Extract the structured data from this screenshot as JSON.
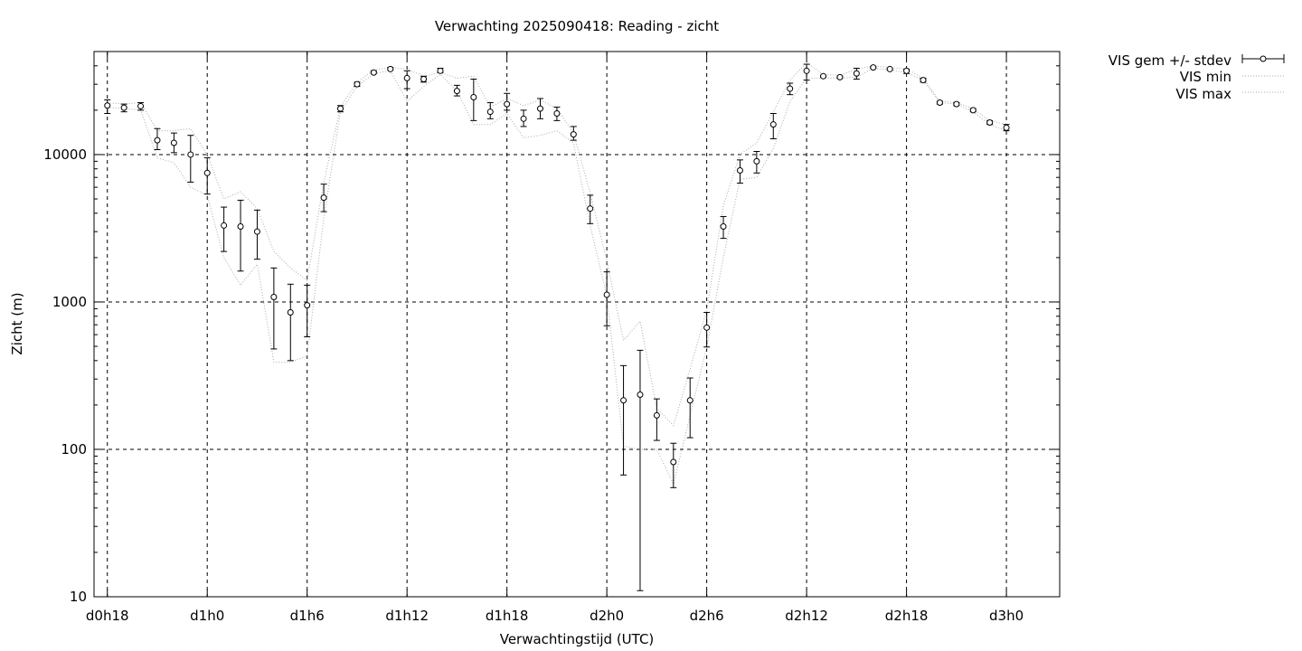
{
  "chart_data": {
    "type": "line",
    "title": "Verwachting 2025090418: Reading - zicht",
    "xlabel": "Verwachtingstijd (UTC)",
    "ylabel": "Zicht (m)",
    "yscale": "log",
    "ylim": [
      10,
      50000
    ],
    "xlim_hours": [
      17.2,
      75.2
    ],
    "grid": true,
    "legend_position": "top-right-outside",
    "x_ticks": [
      {
        "hour": 18,
        "label": "d0h18"
      },
      {
        "hour": 24,
        "label": "d1h0"
      },
      {
        "hour": 30,
        "label": "d1h6"
      },
      {
        "hour": 36,
        "label": "d1h12"
      },
      {
        "hour": 42,
        "label": "d1h18"
      },
      {
        "hour": 48,
        "label": "d2h0"
      },
      {
        "hour": 54,
        "label": "d2h6"
      },
      {
        "hour": 60,
        "label": "d2h12"
      },
      {
        "hour": 66,
        "label": "d2h18"
      },
      {
        "hour": 72,
        "label": "d3h0"
      }
    ],
    "y_ticks": [
      {
        "value": 10,
        "label": "10"
      },
      {
        "value": 100,
        "label": "100"
      },
      {
        "value": 1000,
        "label": "1000"
      },
      {
        "value": 10000,
        "label": "10000"
      }
    ],
    "legend": [
      {
        "name": "VIS gem +/- stdev"
      },
      {
        "name": "VIS min"
      },
      {
        "name": "VIS max"
      }
    ],
    "x_hours": [
      18,
      19,
      20,
      21,
      22,
      23,
      24,
      25,
      26,
      27,
      28,
      29,
      30,
      31,
      32,
      33,
      34,
      35,
      36,
      37,
      38,
      39,
      40,
      41,
      42,
      43,
      44,
      45,
      46,
      47,
      48,
      49,
      50,
      51,
      52,
      53,
      54,
      55,
      56,
      57,
      58,
      59,
      60,
      61,
      62,
      63,
      64,
      65,
      66,
      67,
      68,
      69,
      70,
      71,
      72
    ],
    "series": [
      {
        "name": "VIS gem +/- stdev",
        "values": [
          21500,
          20800,
          21300,
          12500,
          12000,
          10000,
          7500,
          3300,
          3250,
          3000,
          1080,
          850,
          950,
          5100,
          20500,
          30000,
          36000,
          38000,
          33000,
          32500,
          37000,
          27000,
          24500,
          19500,
          22000,
          17500,
          20500,
          19000,
          13700,
          4300,
          1120,
          215,
          235,
          170,
          82,
          215,
          670,
          3250,
          7800,
          9000,
          16000,
          28000,
          37000,
          34000,
          33500,
          35500,
          39000,
          38000,
          37000,
          32000,
          22500,
          22000,
          20000,
          16500,
          15200
        ],
        "err_low": [
          19000,
          19500,
          20000,
          10800,
          10300,
          6500,
          5400,
          2200,
          1620,
          1950,
          480,
          400,
          580,
          4100,
          19500,
          29000,
          35500,
          37500,
          28000,
          31000,
          36000,
          25000,
          17000,
          17500,
          20000,
          15500,
          17500,
          17000,
          12500,
          3400,
          690,
          67,
          11,
          115,
          55,
          120,
          495,
          2700,
          6400,
          7500,
          12800,
          25500,
          32000,
          33500,
          33000,
          32500,
          38500,
          37500,
          35500,
          31000,
          22000,
          21500,
          19500,
          16000,
          14500
        ],
        "err_high": [
          23500,
          22000,
          22500,
          15000,
          14000,
          13500,
          9500,
          4400,
          4900,
          4200,
          1700,
          1320,
          1300,
          6300,
          21500,
          31000,
          37000,
          39000,
          37000,
          34000,
          38500,
          29500,
          32500,
          22500,
          26000,
          20000,
          24000,
          21000,
          15500,
          5300,
          1600,
          370,
          470,
          220,
          110,
          305,
          850,
          3800,
          9200,
          10500,
          19000,
          30500,
          41000,
          34500,
          34000,
          38500,
          39500,
          38500,
          38000,
          33000,
          23000,
          22500,
          20500,
          17000,
          16000
        ]
      },
      {
        "name": "VIS min",
        "values": [
          21000,
          20500,
          20000,
          9500,
          8800,
          6000,
          5300,
          2000,
          1300,
          1800,
          390,
          390,
          430,
          3700,
          19500,
          29000,
          35500,
          37000,
          23000,
          29000,
          35000,
          27000,
          16000,
          16000,
          19000,
          13000,
          13500,
          14500,
          12000,
          3300,
          1100,
          105,
          100,
          100,
          58,
          170,
          490,
          2000,
          6800,
          7000,
          11000,
          23000,
          33000,
          33000,
          33000,
          33500,
          38500,
          37500,
          36000,
          32000,
          22500,
          22000,
          19500,
          16000,
          14500
        ]
      },
      {
        "name": "VIS max",
        "values": [
          22500,
          22000,
          22500,
          14500,
          14500,
          15000,
          10000,
          5000,
          5600,
          4300,
          2200,
          1700,
          1400,
          6500,
          21000,
          31000,
          37500,
          39000,
          38000,
          34000,
          36000,
          33000,
          34000,
          21000,
          24000,
          21500,
          23500,
          20500,
          14000,
          5500,
          1900,
          550,
          740,
          190,
          145,
          350,
          880,
          4500,
          10000,
          12000,
          19500,
          32000,
          42000,
          35000,
          34500,
          38000,
          40000,
          39000,
          38000,
          33000,
          23000,
          22500,
          20500,
          17000,
          16000
        ]
      }
    ]
  }
}
